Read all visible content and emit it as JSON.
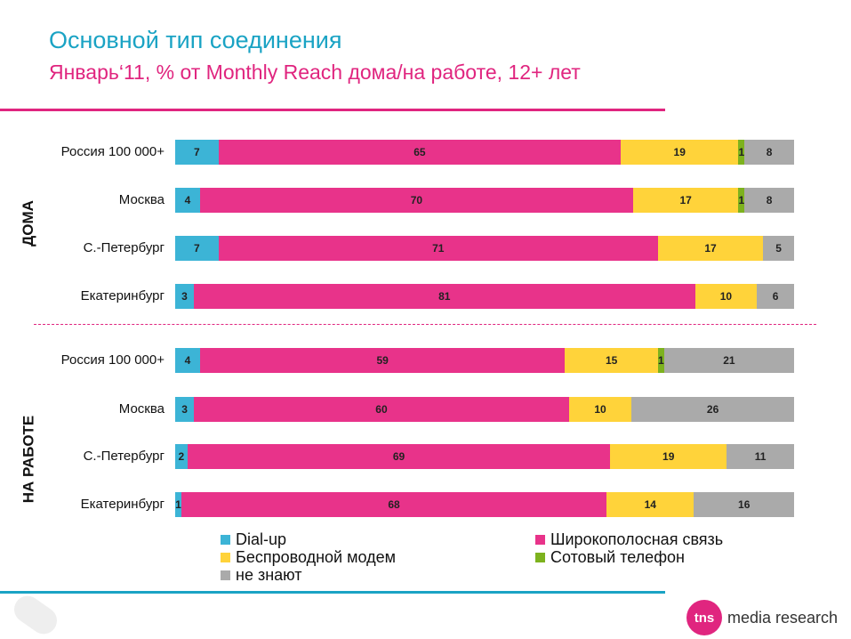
{
  "title": "Основной тип соединения",
  "subtitle": "Январь‘11, % от Monthly Reach дома/на работе, 12+ лет",
  "colors": {
    "accent_cyan": "#1AA3C4",
    "accent_magenta": "#E0257F"
  },
  "chart_data": {
    "type": "bar",
    "orientation": "horizontal",
    "stacked": true,
    "xlim": [
      0,
      100
    ],
    "unit": "%",
    "series_meta": [
      {
        "name": "Dial-up",
        "color": "#3CB4D6"
      },
      {
        "name": "Широкополосная связь",
        "color": "#E8338A"
      },
      {
        "name": "Беспроводной модем",
        "color": "#FFD33A"
      },
      {
        "name": "Сотовый телефон",
        "color": "#7DB21E"
      },
      {
        "name": "не знают",
        "color": "#AAAAAA"
      }
    ],
    "groups": [
      {
        "label": "ДОМА",
        "rows": [
          {
            "label": "Россия 100 000+",
            "values": [
              7,
              65,
              19,
              1,
              8
            ]
          },
          {
            "label": "Москва",
            "values": [
              4,
              70,
              17,
              1,
              8
            ]
          },
          {
            "label": "С.-Петербург",
            "values": [
              7,
              71,
              17,
              0,
              5
            ]
          },
          {
            "label": "Екатеринбург",
            "values": [
              3,
              81,
              10,
              0,
              6
            ]
          }
        ]
      },
      {
        "label": "НА РАБОТЕ",
        "rows": [
          {
            "label": "Россия 100 000+",
            "values": [
              4,
              59,
              15,
              1,
              21
            ]
          },
          {
            "label": "Москва",
            "values": [
              3,
              60,
              10,
              0,
              26
            ]
          },
          {
            "label": "С.-Петербург",
            "values": [
              2,
              69,
              19,
              0,
              11
            ]
          },
          {
            "label": "Екатеринбург",
            "values": [
              1,
              68,
              14,
              0,
              16
            ]
          }
        ]
      }
    ],
    "legend": {
      "placement": "bottom",
      "items": [
        "Dial-up",
        "Широкополосная связь",
        "Беспроводной модем",
        "Сотовый телефон",
        "не знают"
      ]
    }
  },
  "logo": {
    "mark": "tns",
    "text": "media research"
  }
}
